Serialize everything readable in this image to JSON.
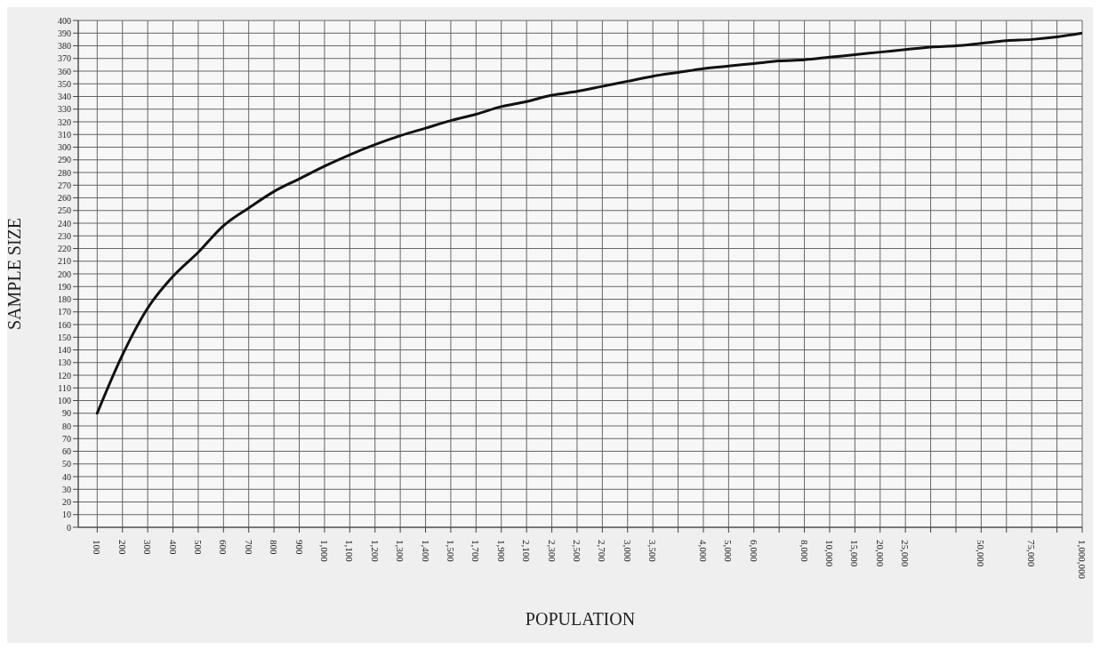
{
  "chart_data": {
    "type": "line",
    "xlabel": "POPULATION",
    "ylabel": "SAMPLE SIZE",
    "categories": [
      "100",
      "200",
      "300",
      "400",
      "500",
      "600",
      "700",
      "800",
      "900",
      "1,000",
      "1,100",
      "1,200",
      "1,300",
      "1,400",
      "1,500",
      "1,700",
      "1,900",
      "2,100",
      "2,300",
      "2,500",
      "2,700",
      "3,000",
      "3,500",
      null,
      "4,000",
      "5,000",
      "6,000",
      null,
      "8,000",
      "10,000",
      "15,000",
      "20,000",
      "25,000",
      null,
      null,
      "50,000",
      null,
      "75,000",
      null,
      "1,000,000"
    ],
    "series": [
      {
        "color": "#111111",
        "values": [
          90,
          136,
          173,
          198,
          217,
          238,
          252,
          265,
          275,
          285,
          294,
          302,
          309,
          315,
          321,
          326,
          332,
          336,
          341,
          344,
          348,
          352,
          356,
          359,
          362,
          364,
          366,
          368,
          369,
          371,
          373,
          375,
          377,
          379,
          380,
          382,
          384,
          385,
          387,
          390
        ]
      }
    ],
    "ylim": [
      0,
      400
    ],
    "yticks": [
      0,
      10,
      20,
      30,
      40,
      50,
      60,
      70,
      80,
      90,
      100,
      110,
      120,
      130,
      140,
      150,
      160,
      170,
      180,
      190,
      200,
      210,
      220,
      230,
      240,
      250,
      260,
      270,
      280,
      290,
      300,
      310,
      320,
      330,
      340,
      350,
      360,
      370,
      380,
      390,
      400
    ],
    "grid": true,
    "marker": "none",
    "line_style": "solid"
  }
}
